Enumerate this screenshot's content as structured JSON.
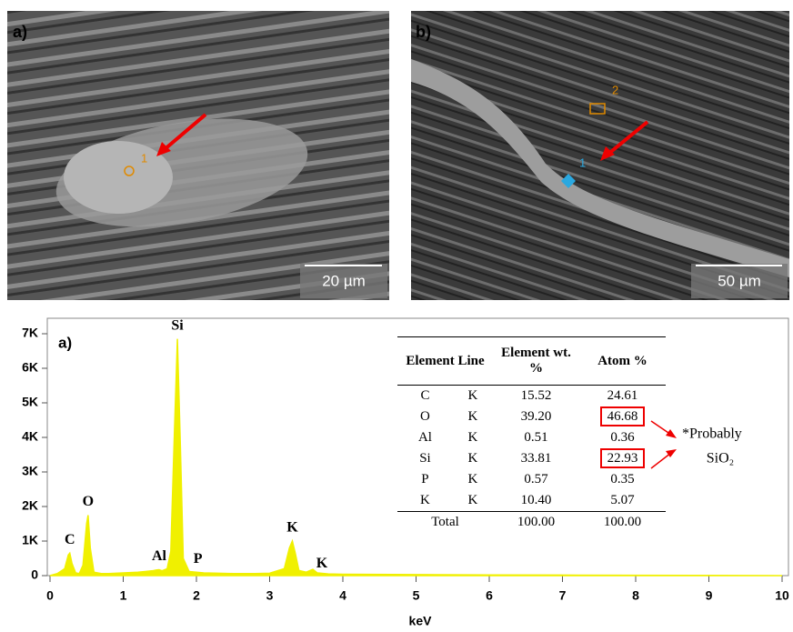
{
  "images": [
    {
      "panel": "a)",
      "point_label": "1",
      "scale_bar": "20 µm"
    },
    {
      "panel": "b)",
      "point_labels": [
        "1",
        "2"
      ],
      "scale_bar": "50 µm"
    }
  ],
  "chart_data": {
    "type": "area",
    "panel": "a)",
    "x_label": "keV",
    "color": "#f0f000",
    "x": [
      0,
      0.1,
      0.2,
      0.25,
      0.27,
      0.3,
      0.35,
      0.4,
      0.45,
      0.5,
      0.52,
      0.55,
      0.6,
      0.7,
      0.8,
      0.9,
      1.0,
      1.1,
      1.2,
      1.3,
      1.4,
      1.45,
      1.49,
      1.53,
      1.6,
      1.65,
      1.7,
      1.74,
      1.78,
      1.82,
      1.9,
      2.0,
      2.1,
      2.3,
      2.5,
      2.8,
      3.0,
      3.2,
      3.27,
      3.31,
      3.35,
      3.4,
      3.5,
      3.59,
      3.65,
      3.8,
      4.0,
      5.0,
      6.0,
      7.0,
      8.0,
      9.0,
      10.0
    ],
    "values": [
      0,
      60,
      200,
      600,
      650,
      350,
      80,
      60,
      300,
      1500,
      1750,
      800,
      100,
      60,
      60,
      70,
      80,
      90,
      100,
      120,
      140,
      160,
      170,
      140,
      200,
      700,
      4200,
      6850,
      3800,
      500,
      120,
      100,
      80,
      70,
      60,
      60,
      70,
      200,
      800,
      1000,
      650,
      150,
      100,
      180,
      80,
      50,
      40,
      30,
      20,
      15,
      10,
      5,
      0
    ],
    "peak_labels": [
      {
        "label": "C",
        "x": 0.27
      },
      {
        "label": "O",
        "x": 0.52
      },
      {
        "label": "Al",
        "x": 1.49
      },
      {
        "label": "Si",
        "x": 1.74
      },
      {
        "label": "P",
        "x": 2.02
      },
      {
        "label": "K",
        "x": 3.31
      },
      {
        "label": "K",
        "x": 3.59
      }
    ],
    "xlim": [
      0,
      10
    ],
    "xticks": [
      0,
      1,
      2,
      3,
      4,
      5,
      6,
      7,
      8,
      9,
      10
    ],
    "ylim": [
      0,
      7000
    ],
    "yticks": [
      0,
      {
        "value": 1000,
        "label": "1K"
      },
      {
        "value": 2000,
        "label": "2K"
      },
      {
        "value": 3000,
        "label": "3K"
      },
      {
        "value": 4000,
        "label": "4K"
      },
      {
        "value": 5000,
        "label": "5K"
      },
      {
        "value": 6000,
        "label": "6K"
      },
      {
        "value": 7000,
        "label": "7K"
      }
    ]
  },
  "table": {
    "header": [
      "Element Line",
      "Element wt. %",
      "Atom %"
    ],
    "rows": [
      [
        "C",
        "K",
        "15.52",
        "24.61"
      ],
      [
        "O",
        "K",
        "39.20",
        "46.68"
      ],
      [
        "Al",
        "K",
        "0.51",
        "0.36"
      ],
      [
        "Si",
        "K",
        "33.81",
        "22.93"
      ],
      [
        "P",
        "K",
        "0.57",
        "0.35"
      ],
      [
        "K",
        "K",
        "10.40",
        "5.07"
      ]
    ],
    "total": [
      "Total",
      "100.00",
      "100.00"
    ],
    "highlight": [
      [
        1,
        3
      ],
      [
        3,
        3
      ]
    ],
    "note": [
      "*Probably",
      "SiO₂"
    ]
  }
}
